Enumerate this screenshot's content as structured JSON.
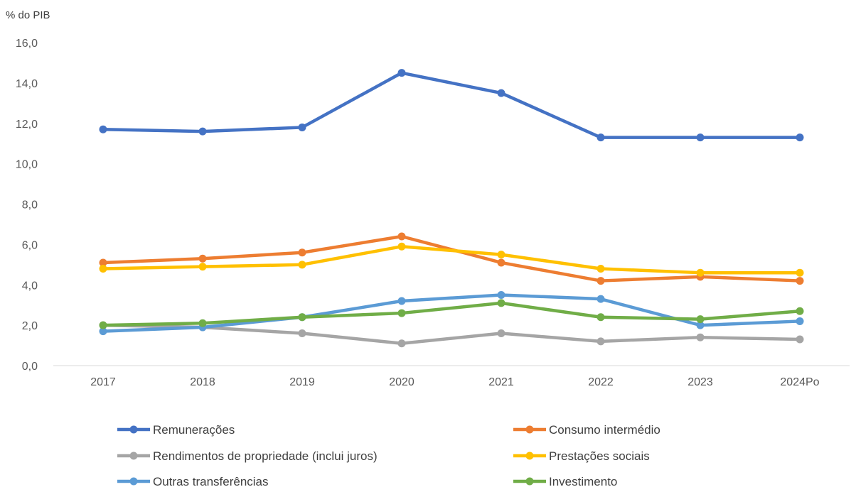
{
  "chart_data": {
    "type": "line",
    "ylabel": "% do PIB",
    "xlabel": "",
    "title": "",
    "categories": [
      "2017",
      "2018",
      "2019",
      "2020",
      "2021",
      "2022",
      "2023",
      "2024Po"
    ],
    "ylim": [
      0,
      16
    ],
    "yticks": [
      "0,0",
      "2,0",
      "4,0",
      "6,0",
      "8,0",
      "10,0",
      "12,0",
      "14,0",
      "16,0"
    ],
    "grid": false,
    "legend_position": "bottom",
    "series": [
      {
        "name": "Remunerações",
        "color": "#4472C4",
        "values": [
          11.7,
          11.6,
          11.8,
          14.5,
          13.5,
          11.3,
          11.3,
          11.3
        ]
      },
      {
        "name": "Consumo intermédio",
        "color": "#ED7D31",
        "values": [
          5.1,
          5.3,
          5.6,
          6.4,
          5.1,
          4.2,
          4.4,
          4.2
        ]
      },
      {
        "name": "Rendimentos de propriedade (inclui juros)",
        "color": "#A5A5A5",
        "values": [
          2.0,
          1.9,
          1.6,
          1.1,
          1.6,
          1.2,
          1.4,
          1.3
        ]
      },
      {
        "name": "Prestações sociais",
        "color": "#FFC000",
        "values": [
          4.8,
          4.9,
          5.0,
          5.9,
          5.5,
          4.8,
          4.6,
          4.6
        ]
      },
      {
        "name": "Outras transferências",
        "color": "#5B9BD5",
        "values": [
          1.7,
          1.9,
          2.4,
          3.2,
          3.5,
          3.3,
          2.0,
          2.2
        ]
      },
      {
        "name": "Investimento",
        "color": "#70AD47",
        "values": [
          2.0,
          2.1,
          2.4,
          2.6,
          3.1,
          2.4,
          2.3,
          2.7
        ]
      }
    ]
  }
}
